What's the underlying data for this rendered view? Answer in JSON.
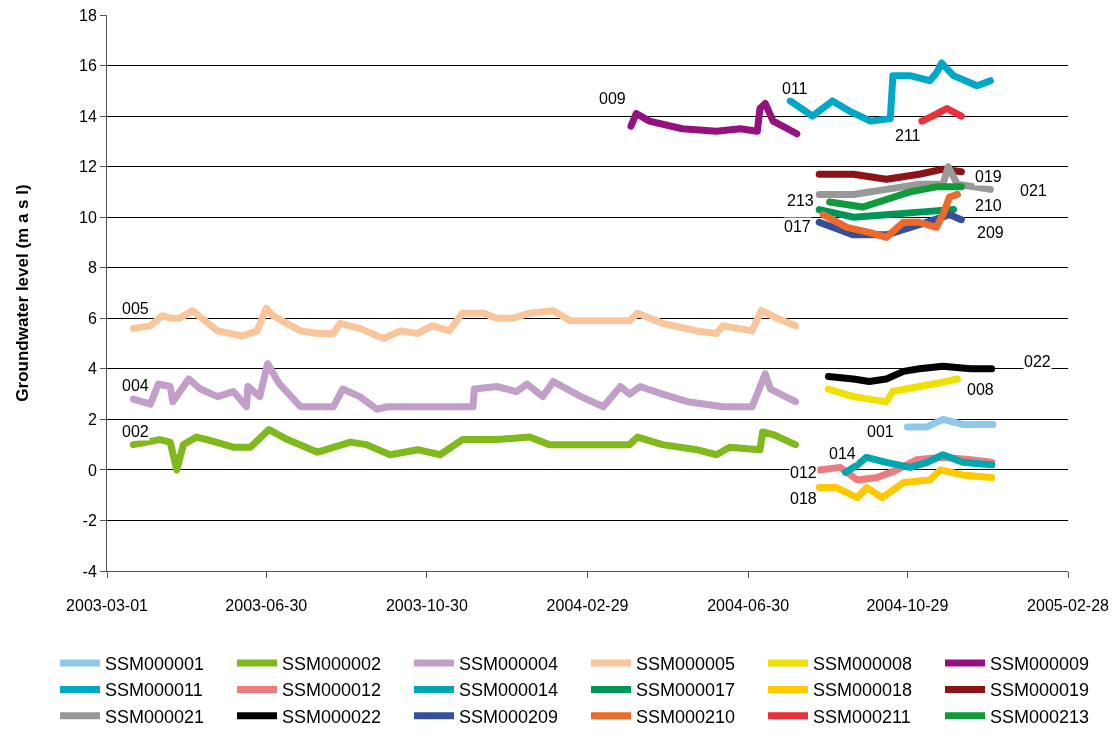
{
  "chart_data": {
    "type": "line",
    "ylabel": "Groundwater level (m a s l)",
    "xlim": [
      "2003-03-01",
      "2005-02-28"
    ],
    "xticks": [
      "2003-03-01",
      "2003-06-30",
      "2003-10-30",
      "2004-02-29",
      "2004-06-30",
      "2004-10-29",
      "2005-02-28"
    ],
    "ylim": [
      -4,
      18
    ],
    "yticks": [
      -4,
      -2,
      0,
      2,
      4,
      6,
      8,
      10,
      12,
      14,
      16,
      18
    ],
    "grid": "y",
    "legend": "bottom",
    "series": [
      {
        "name": "SSM000001",
        "color": "#8fc8ea",
        "x": [
          "2004-10-29",
          "2004-11-13",
          "2004-11-25",
          "2004-12-10",
          "2005-01-02"
        ],
        "values": [
          1.7,
          1.7,
          2.0,
          1.8,
          1.8
        ]
      },
      {
        "name": "SSM000002",
        "color": "#80b91c",
        "x": [
          "2003-03-21",
          "2003-04-10",
          "2003-04-18",
          "2003-04-23",
          "2003-04-28",
          "2003-05-08",
          "2003-05-16",
          "2003-06-05",
          "2003-06-18",
          "2003-07-02",
          "2003-07-16",
          "2003-08-08",
          "2003-09-02",
          "2003-09-14",
          "2003-10-02",
          "2003-10-23",
          "2003-11-09",
          "2003-11-26",
          "2003-12-22",
          "2004-01-16",
          "2004-01-31",
          "2004-04-01",
          "2004-04-07",
          "2004-04-26",
          "2004-05-22",
          "2004-06-06",
          "2004-06-16",
          "2004-07-09",
          "2004-07-11",
          "2004-07-19",
          "2004-08-05"
        ],
        "values": [
          1.0,
          1.2,
          1.1,
          0.0,
          1.0,
          1.3,
          1.2,
          0.9,
          0.9,
          1.6,
          1.2,
          0.7,
          1.1,
          1.0,
          0.6,
          0.8,
          0.6,
          1.2,
          1.2,
          1.3,
          1.0,
          1.0,
          1.3,
          1.0,
          0.8,
          0.6,
          0.9,
          0.8,
          1.5,
          1.4,
          1.0
        ]
      },
      {
        "name": "SSM000004",
        "color": "#c29fc9",
        "x": [
          "2003-03-21",
          "2003-04-03",
          "2003-04-09",
          "2003-04-18",
          "2003-04-20",
          "2003-05-02",
          "2003-05-11",
          "2003-05-24",
          "2003-06-05",
          "2003-06-15",
          "2003-06-16",
          "2003-06-25",
          "2003-07-01",
          "2003-07-10",
          "2003-07-26",
          "2003-08-20",
          "2003-08-27",
          "2003-09-09",
          "2003-09-22",
          "2003-09-30",
          "2003-10-23",
          "2003-12-04",
          "2003-12-05",
          "2003-12-22",
          "2004-01-06",
          "2004-01-14",
          "2004-01-26",
          "2004-02-03",
          "2004-02-24",
          "2004-03-12",
          "2004-03-25",
          "2004-04-01",
          "2004-04-09",
          "2004-04-26",
          "2004-05-15",
          "2004-06-11",
          "2004-07-03",
          "2004-07-13",
          "2004-07-17",
          "2004-08-05"
        ],
        "values": [
          2.8,
          2.6,
          3.4,
          3.3,
          2.7,
          3.6,
          3.2,
          2.9,
          3.1,
          2.5,
          3.3,
          2.9,
          4.2,
          3.4,
          2.5,
          2.5,
          3.2,
          2.9,
          2.4,
          2.5,
          2.5,
          2.5,
          3.2,
          3.3,
          3.1,
          3.4,
          2.9,
          3.5,
          2.9,
          2.5,
          3.3,
          3.0,
          3.3,
          3.0,
          2.7,
          2.5,
          2.5,
          3.8,
          3.2,
          2.7
        ]
      },
      {
        "name": "SSM000005",
        "color": "#f9c69c",
        "x": [
          "2003-03-21",
          "2003-04-03",
          "2003-04-12",
          "2003-04-19",
          "2003-04-25",
          "2003-05-05",
          "2003-05-24",
          "2003-06-12",
          "2003-06-23",
          "2003-06-30",
          "2003-07-05",
          "2003-07-26",
          "2003-08-08",
          "2003-08-20",
          "2003-08-25",
          "2003-09-09",
          "2003-09-27",
          "2003-10-10",
          "2003-10-23",
          "2003-11-03",
          "2003-11-16",
          "2003-11-26",
          "2003-12-12",
          "2003-12-22",
          "2004-01-03",
          "2004-01-16",
          "2004-02-03",
          "2004-02-16",
          "2004-04-01",
          "2004-04-07",
          "2004-04-26",
          "2004-05-22",
          "2004-06-06",
          "2004-06-11",
          "2004-07-03",
          "2004-07-10",
          "2004-07-22",
          "2004-08-05"
        ],
        "values": [
          5.6,
          5.7,
          6.1,
          6.0,
          6.0,
          6.3,
          5.5,
          5.3,
          5.5,
          6.4,
          6.1,
          5.5,
          5.4,
          5.4,
          5.8,
          5.6,
          5.2,
          5.5,
          5.4,
          5.7,
          5.5,
          6.2,
          6.2,
          6.0,
          6.0,
          6.2,
          6.3,
          5.9,
          5.9,
          6.2,
          5.8,
          5.5,
          5.4,
          5.7,
          5.5,
          6.3,
          6.0,
          5.7
        ]
      },
      {
        "name": "SSM000008",
        "color": "#f0e000",
        "x": [
          "2004-08-30",
          "2004-09-18",
          "2004-09-30",
          "2004-10-13",
          "2004-10-18",
          "2004-11-07",
          "2004-11-28",
          "2004-12-06"
        ],
        "values": [
          3.2,
          2.9,
          2.8,
          2.7,
          3.1,
          3.3,
          3.5,
          3.6
        ]
      },
      {
        "name": "SSM000009",
        "color": "#951080",
        "x": [
          "2004-04-02",
          "2004-04-06",
          "2004-04-16",
          "2004-05-11",
          "2004-06-06",
          "2004-06-24",
          "2004-07-07",
          "2004-07-09",
          "2004-07-13",
          "2004-07-19",
          "2004-07-30",
          "2004-08-06"
        ],
        "values": [
          13.6,
          14.1,
          13.8,
          13.5,
          13.4,
          13.5,
          13.4,
          14.3,
          14.5,
          13.8,
          13.5,
          13.3
        ]
      },
      {
        "name": "SSM000011",
        "color": "#00a8c8",
        "x": [
          "2004-08-01",
          "2004-08-18",
          "2004-09-02",
          "2004-09-15",
          "2004-10-01",
          "2004-10-16",
          "2004-10-18",
          "2004-10-31",
          "2004-11-15",
          "2004-11-20",
          "2004-11-24",
          "2004-12-03",
          "2004-12-21",
          "2004-12-31"
        ],
        "values": [
          14.6,
          14.0,
          14.6,
          14.2,
          13.8,
          13.9,
          15.6,
          15.6,
          15.4,
          15.7,
          16.1,
          15.6,
          15.2,
          15.4
        ]
      },
      {
        "name": "SSM000012",
        "color": "#ec7c80",
        "x": [
          "2004-08-23",
          "2004-09-08",
          "2004-09-21",
          "2004-10-06",
          "2004-10-21",
          "2004-11-05",
          "2004-11-25",
          "2004-12-16",
          "2005-01-01"
        ],
        "values": [
          0.0,
          0.1,
          -0.4,
          -0.3,
          0.0,
          0.4,
          0.5,
          0.4,
          0.3
        ]
      },
      {
        "name": "SSM000014",
        "color": "#00a6b0",
        "x": [
          "2004-09-12",
          "2004-09-21",
          "2004-09-28",
          "2004-10-13",
          "2004-10-31",
          "2004-11-13",
          "2004-11-25",
          "2004-12-10",
          "2005-01-01"
        ],
        "values": [
          -0.1,
          0.2,
          0.5,
          0.3,
          0.1,
          0.3,
          0.6,
          0.3,
          0.2
        ]
      },
      {
        "name": "SSM000017",
        "color": "#00965a",
        "x": [
          "2004-08-23",
          "2004-09-18",
          "2004-10-13",
          "2004-11-07",
          "2004-12-03"
        ],
        "values": [
          10.3,
          10.0,
          10.1,
          10.2,
          10.3
        ]
      },
      {
        "name": "SSM000018",
        "color": "#ffc800",
        "x": [
          "2004-08-23",
          "2004-09-05",
          "2004-09-21",
          "2004-09-28",
          "2004-10-10",
          "2004-10-26",
          "2004-11-15",
          "2004-11-23",
          "2004-12-10",
          "2005-01-01"
        ],
        "values": [
          -0.7,
          -0.7,
          -1.1,
          -0.7,
          -1.1,
          -0.5,
          -0.4,
          0.0,
          -0.2,
          -0.3
        ]
      },
      {
        "name": "SSM000019",
        "color": "#8c1418",
        "x": [
          "2004-08-23",
          "2004-09-18",
          "2004-10-13",
          "2004-11-07",
          "2004-11-25",
          "2004-12-09"
        ],
        "values": [
          11.7,
          11.7,
          11.5,
          11.7,
          11.9,
          11.8
        ]
      },
      {
        "name": "SSM000021",
        "color": "#999999",
        "x": [
          "2004-08-23",
          "2004-09-18",
          "2004-10-13",
          "2004-11-07",
          "2004-11-25",
          "2004-11-29",
          "2004-12-06",
          "2004-12-31"
        ],
        "values": [
          10.9,
          10.9,
          11.1,
          11.3,
          11.3,
          12.0,
          11.3,
          11.1
        ]
      },
      {
        "name": "SSM000022",
        "color": "#000000",
        "x": [
          "2004-08-30",
          "2004-09-18",
          "2004-09-30",
          "2004-10-13",
          "2004-10-26",
          "2004-11-07",
          "2004-11-25",
          "2004-12-16",
          "2005-01-01"
        ],
        "values": [
          3.7,
          3.6,
          3.5,
          3.6,
          3.9,
          4.0,
          4.1,
          4.0,
          4.0
        ]
      },
      {
        "name": "SSM000209",
        "color": "#344f9c",
        "x": [
          "2004-08-23",
          "2004-09-18",
          "2004-10-13",
          "2004-11-07",
          "2004-11-30",
          "2004-12-09"
        ],
        "values": [
          9.8,
          9.3,
          9.3,
          9.7,
          10.1,
          9.9
        ]
      },
      {
        "name": "SSM000210",
        "color": "#ee6a2a",
        "x": [
          "2004-08-26",
          "2004-09-13",
          "2004-09-30",
          "2004-10-13",
          "2004-10-26",
          "2004-11-07",
          "2004-11-20",
          "2004-11-25",
          "2004-11-30",
          "2004-12-06"
        ],
        "values": [
          10.1,
          9.6,
          9.4,
          9.2,
          9.8,
          9.8,
          9.6,
          10.1,
          10.8,
          10.9
        ]
      },
      {
        "name": "SSM000211",
        "color": "#e8313a",
        "x": [
          "2004-11-09",
          "2004-11-17",
          "2004-11-28",
          "2004-12-09"
        ],
        "values": [
          13.8,
          14.0,
          14.3,
          14.0
        ]
      },
      {
        "name": "SSM000213",
        "color": "#119a3a",
        "x": [
          "2004-08-31",
          "2004-09-25",
          "2004-10-13",
          "2004-10-31",
          "2004-11-20",
          "2004-12-09"
        ],
        "values": [
          10.6,
          10.4,
          10.7,
          11.0,
          11.2,
          11.2
        ]
      }
    ],
    "annotations": [
      "009",
      "011",
      "211",
      "019",
      "021",
      "213",
      "210",
      "017",
      "209",
      "005",
      "004",
      "002",
      "022",
      "008",
      "001",
      "014",
      "012",
      "018"
    ]
  }
}
